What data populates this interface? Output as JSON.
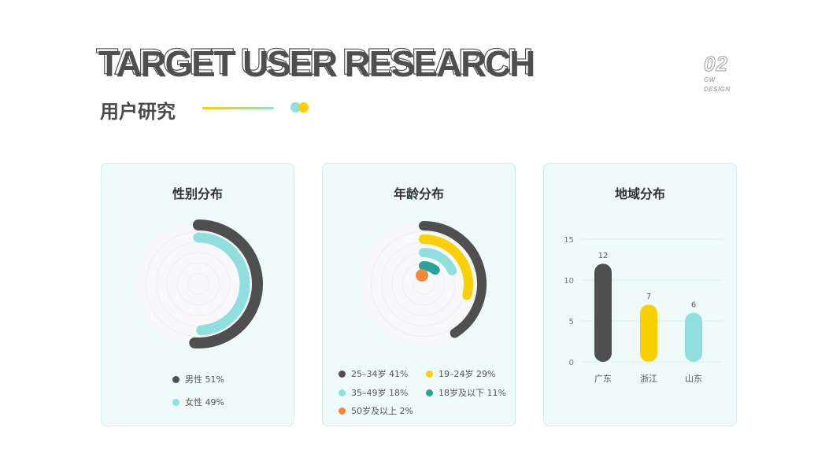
{
  "header": {
    "title": "TARGET USER RESEARCH",
    "subtitle": "用户研究",
    "brand_number": "02",
    "brand_line1": "GW",
    "brand_line2": "DESIGN"
  },
  "colors": {
    "dark": "#4f4f4f",
    "yellow": "#f9d000",
    "cyan": "#8fdfdf",
    "teal": "#27a39b",
    "orange": "#f5873a",
    "card_bg": "#effafa",
    "card_border": "#cdeff0"
  },
  "cards": {
    "gender": {
      "title": "性别分布"
    },
    "age": {
      "title": "年龄分布"
    },
    "region": {
      "title": "地域分布"
    }
  },
  "chart_data": [
    {
      "type": "pie",
      "title": "性别分布",
      "series": [
        {
          "name": "男性",
          "value": 51,
          "label": "男性 51%",
          "color": "#4f4f4f"
        },
        {
          "name": "女性",
          "value": 49,
          "label": "女性 49%",
          "color": "#8fdfdf"
        }
      ]
    },
    {
      "type": "pie",
      "title": "年龄分布",
      "series": [
        {
          "name": "25-34岁",
          "value": 41,
          "label": "25–34岁 41%",
          "color": "#4f4f4f"
        },
        {
          "name": "19-24岁",
          "value": 29,
          "label": "19–24岁 29%",
          "color": "#f9d000"
        },
        {
          "name": "35-49岁",
          "value": 18,
          "label": "35–49岁 18%",
          "color": "#8fdfdf"
        },
        {
          "name": "18岁及以下",
          "value": 11,
          "label": "18岁及以下 11%",
          "color": "#27a39b"
        },
        {
          "name": "50岁及以上",
          "value": 2,
          "label": "50岁及以上 2%",
          "color": "#f5873a"
        }
      ]
    },
    {
      "type": "bar",
      "title": "地域分布",
      "categories": [
        "广东",
        "浙江",
        "山东"
      ],
      "values": [
        12,
        7,
        6
      ],
      "colors": [
        "#4f4f4f",
        "#f9d000",
        "#8fdfdf"
      ],
      "ylim": [
        0,
        15
      ],
      "yticks": [
        0,
        5,
        10,
        15
      ],
      "grid": true
    }
  ]
}
